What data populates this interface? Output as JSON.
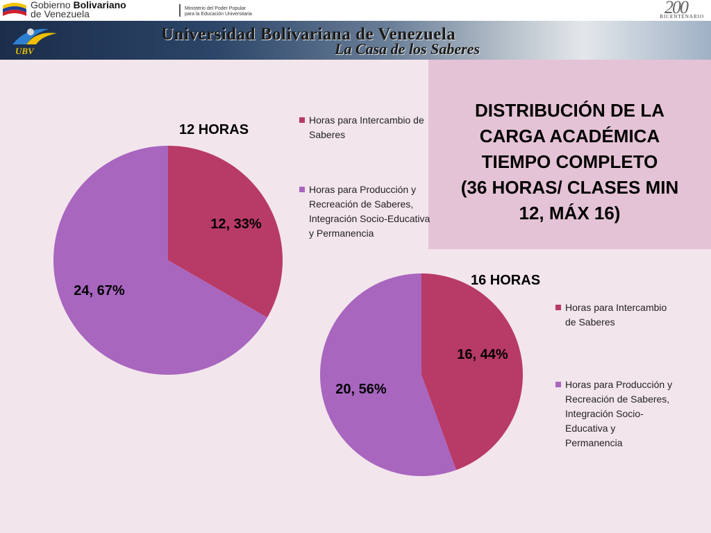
{
  "header": {
    "gov_line1_a": "Gobierno ",
    "gov_line1_b": "Bolivariano",
    "gov_line2": "de Venezuela",
    "ministry_line1": "Ministerio del Poder Popular",
    "ministry_line2": "para la Educación Universitaria",
    "bicentennial_number": "200",
    "bicentennial_label": "BICENTENARIO",
    "ubv_label": "UBV",
    "banner_title": "Universidad Bolivariana de Venezuela",
    "banner_subtitle": "La Casa de los Saberes"
  },
  "slide_title": "DISTRIBUCIÓN DE LA\nCARGA ACADÉMICA\nTIEMPO COMPLETO\n(36 HORAS/ CLASES MIN\n12, MÁX 16)",
  "colors": {
    "intercambio": "#b83a66",
    "produccion": "#a866bf",
    "title_box": "#e5c3d6",
    "background": "#f3e5ec"
  },
  "chart_data": [
    {
      "type": "pie",
      "title": "12 HORAS",
      "categories": [
        "Horas para Intercambio de Saberes",
        "Horas para Producción y Recreación de Saberes, Integración Socio-Educativa y Permanencia"
      ],
      "values": [
        12,
        24
      ],
      "percent_labels": [
        "12, 33%",
        "24, 67%"
      ],
      "legend_text": [
        "Horas para Intercambio de\nSaberes",
        "Horas para Producción y\nRecreación de Saberes,\nIntegración Socio-Educativa\ny Permanencia"
      ],
      "legend_position": "right"
    },
    {
      "type": "pie",
      "title": "16 HORAS",
      "categories": [
        "Horas para Intercambio de Saberes",
        "Horas para Producción y Recreación de Saberes, Integración Socio-Educativa y Permanencia"
      ],
      "values": [
        16,
        20
      ],
      "percent_labels": [
        "16, 44%",
        "20, 56%"
      ],
      "legend_text": [
        "Horas para Intercambio\nde Saberes",
        "Horas para Producción y\nRecreación de Saberes,\nIntegración Socio-\nEducativa y\nPermanencia"
      ],
      "legend_position": "right"
    }
  ]
}
